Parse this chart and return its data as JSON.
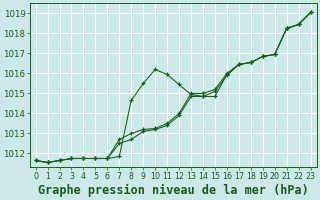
{
  "background_color": "#cce8e8",
  "grid_color": "#ffffff",
  "line_color": "#1a5c1a",
  "marker_color": "#1a5c1a",
  "xlabel": "Graphe pression niveau de la mer (hPa)",
  "xlabel_fontsize": 8.5,
  "ylim": [
    1011.3,
    1019.5
  ],
  "xlim": [
    -0.5,
    23.5
  ],
  "yticks": [
    1012,
    1013,
    1014,
    1015,
    1016,
    1017,
    1018,
    1019
  ],
  "xticks": [
    0,
    1,
    2,
    3,
    4,
    5,
    6,
    7,
    8,
    9,
    10,
    11,
    12,
    13,
    14,
    15,
    16,
    17,
    18,
    19,
    20,
    21,
    22,
    23
  ],
  "line1": [
    1011.65,
    1011.55,
    1011.65,
    1011.75,
    1011.75,
    1011.75,
    1011.75,
    1011.85,
    1014.65,
    1015.5,
    1016.2,
    1015.95,
    1015.45,
    1014.95,
    1014.85,
    1014.85,
    1015.95,
    1016.45,
    1016.55,
    1016.85,
    1016.95,
    1018.25,
    1018.45,
    1019.05
  ],
  "line2": [
    1011.65,
    1011.55,
    1011.65,
    1011.75,
    1011.75,
    1011.75,
    1011.75,
    1012.5,
    1012.7,
    1013.1,
    1013.2,
    1013.4,
    1013.9,
    1014.85,
    1014.85,
    1015.1,
    1015.9,
    1016.45,
    1016.55,
    1016.85,
    1016.95,
    1018.25,
    1018.45,
    1019.05
  ],
  "line3": [
    1011.65,
    1011.55,
    1011.65,
    1011.75,
    1011.75,
    1011.75,
    1011.75,
    1012.7,
    1013.0,
    1013.2,
    1013.25,
    1013.5,
    1014.0,
    1015.0,
    1015.0,
    1015.2,
    1016.0,
    1016.45,
    1016.55,
    1016.85,
    1016.95,
    1018.25,
    1018.45,
    1019.05
  ],
  "tick_fontsize": 6.0,
  "tick_color": "#1a5c1a",
  "axis_color": "#1a5c1a"
}
